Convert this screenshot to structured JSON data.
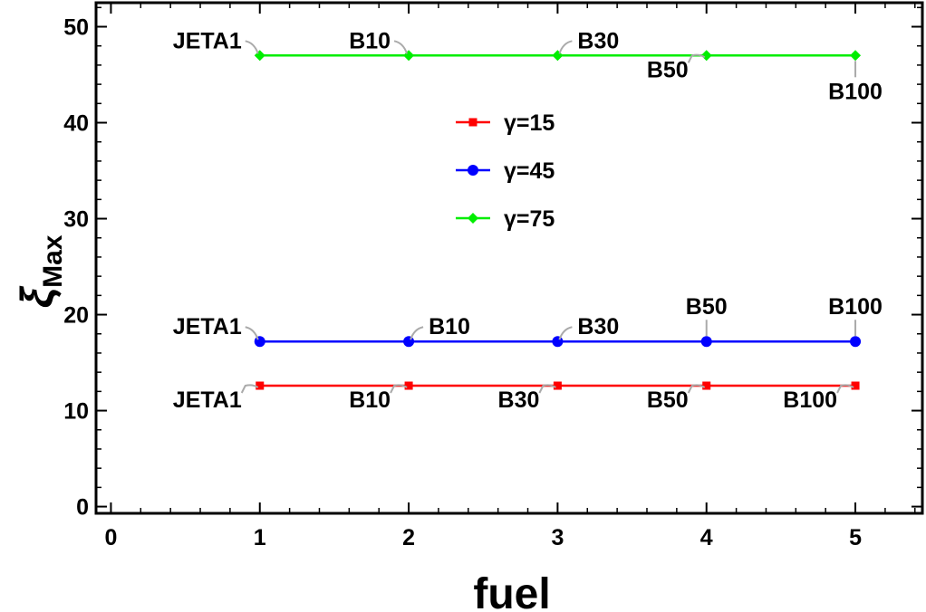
{
  "chart_data": {
    "type": "line",
    "xlabel": "fuel",
    "ylabel_main": "ξ",
    "ylabel_sub": "Max",
    "xlim": [
      -0.1,
      5.45
    ],
    "ylim": [
      -0.7,
      52.5
    ],
    "xticks": [
      0,
      1,
      2,
      3,
      4,
      5
    ],
    "yticks": [
      0,
      10,
      20,
      30,
      40,
      50
    ],
    "x": [
      1,
      2,
      3,
      4,
      5
    ],
    "point_labels": [
      "JETA1",
      "B10",
      "B30",
      "B50",
      "B100"
    ],
    "legend_position": "upper-center",
    "series": [
      {
        "name": "γ=15",
        "color": "#ff0000",
        "marker": "square",
        "values": [
          12.6,
          12.6,
          12.6,
          12.6,
          12.6
        ]
      },
      {
        "name": "γ=45",
        "color": "#0000ff",
        "marker": "circle",
        "values": [
          17.2,
          17.2,
          17.2,
          17.2,
          17.2
        ]
      },
      {
        "name": "γ=75",
        "color": "#00ee00",
        "marker": "diamond",
        "values": [
          47.0,
          47.0,
          47.0,
          47.0,
          47.0
        ]
      }
    ]
  }
}
